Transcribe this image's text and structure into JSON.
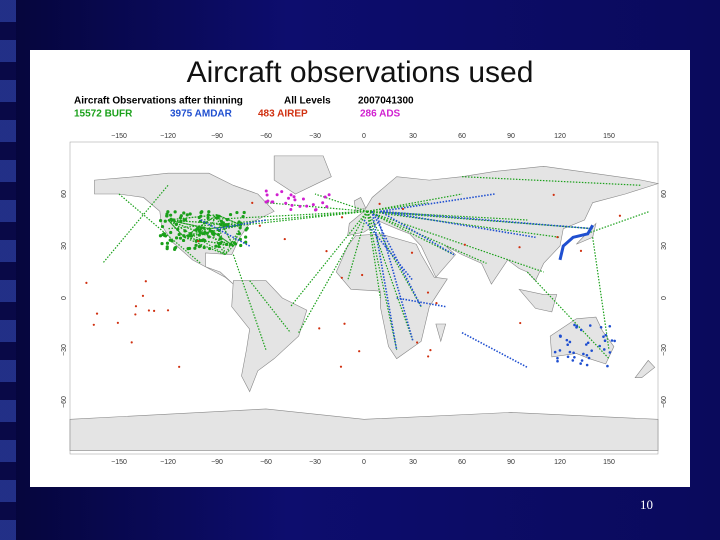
{
  "title": "Aircraft observations used",
  "legend": {
    "heading": "Aircraft Observations after thinning",
    "levels": "All Levels",
    "date": "2007041300",
    "counts": [
      {
        "label": "15572 BUFR",
        "color": "#1aa01a"
      },
      {
        "label": "3975 AMDAR",
        "color": "#1f4fd0"
      },
      {
        "label": "483 AIREP",
        "color": "#d03010"
      },
      {
        "label": "286 ADS",
        "color": "#d020d0"
      }
    ]
  },
  "map": {
    "lon_labels": [
      "−150",
      "−120",
      "−90",
      "−60",
      "−30",
      "0",
      "30",
      "60",
      "90",
      "120",
      "150"
    ],
    "lat_labels": [
      "60",
      "30",
      "0",
      "−30",
      "−60"
    ]
  },
  "page_number": "10"
}
